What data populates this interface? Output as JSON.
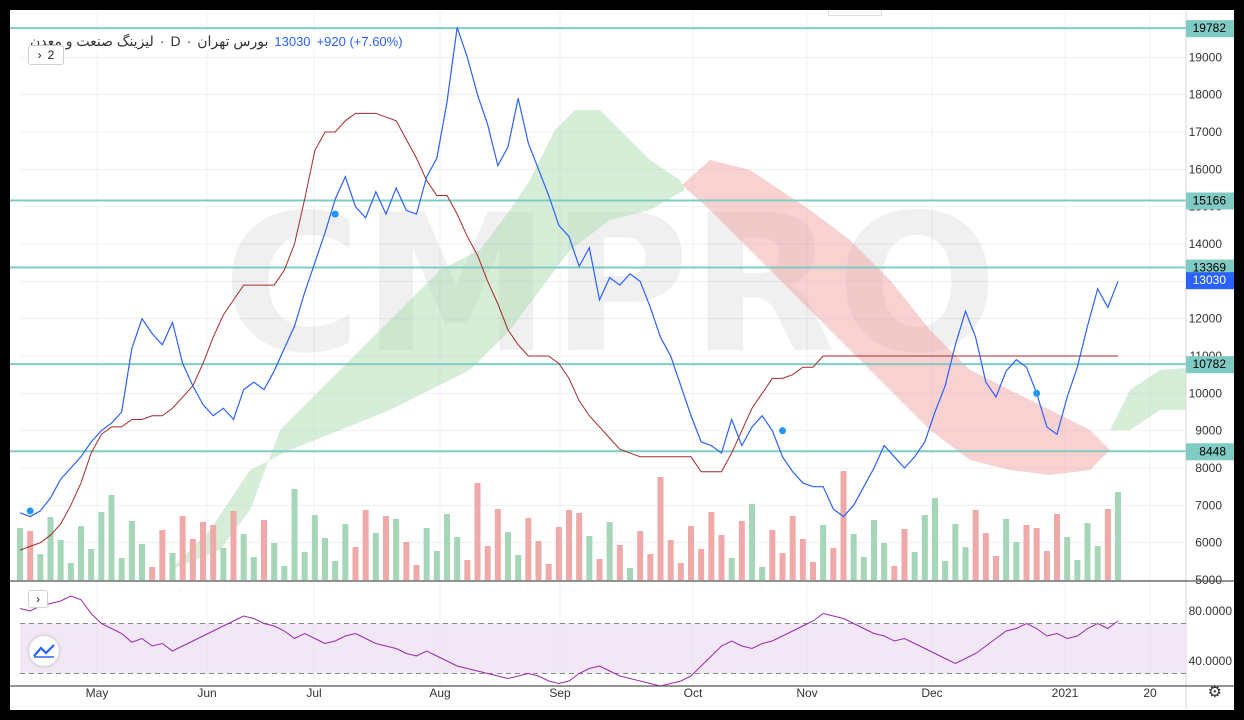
{
  "legend": {
    "exchange": "بورس تهران",
    "separator": "·",
    "interval": "D",
    "symbol": "لیزینگ صنعت و معدن",
    "price": "13030",
    "change": "+920 (+7.60%)"
  },
  "collapse_button": "2",
  "collapse_chevron": "›",
  "rsi_chevron": "›",
  "watermark": "CMPRO",
  "colors": {
    "price_line": "#2962ff",
    "base_line": "#a52a2a",
    "cloud_bull": "#a5d6a7",
    "cloud_bear": "#ef9a9a",
    "level_line": "#80cbc4",
    "level_label_bg": "#80cbc4",
    "last_price_bg": "#2962ff",
    "vol_up": "#a5d6b8",
    "vol_down": "#f0a9a9",
    "rsi_line": "#9c27b0",
    "rsi_band": "#ead7ec"
  },
  "chart_data": {
    "type": "line",
    "x_labels": [
      "May",
      "Jun",
      "Jul",
      "Aug",
      "Sep",
      "Oct",
      "Nov",
      "Dec",
      "2021",
      "20"
    ],
    "y_ticks": [
      "19000",
      "18000",
      "17000",
      "16000",
      "15000",
      "14000",
      "13000",
      "12000",
      "11000",
      "10000",
      "9000",
      "8000",
      "7000",
      "6000",
      "5000"
    ],
    "ylim": [
      5000,
      20000
    ],
    "levels": [
      19782,
      15166,
      13369,
      10782,
      8448
    ],
    "last_price": 13030,
    "series": [
      {
        "key": "price",
        "values": [
          6800,
          6700,
          6850,
          7200,
          7700,
          8000,
          8300,
          8700,
          9000,
          9200,
          9500,
          11200,
          12000,
          11600,
          11300,
          11900,
          10800,
          10200,
          9700,
          9400,
          9600,
          9300,
          10100,
          10300,
          10100,
          10600,
          11200,
          11800,
          12700,
          13500,
          14300,
          15200,
          15800,
          15000,
          14700,
          15400,
          14800,
          15500,
          14900,
          14800,
          15800,
          16300,
          17800,
          19800,
          19000,
          18000,
          17200,
          16100,
          16600,
          17900,
          16700,
          16000,
          15300,
          14500,
          14200,
          13400,
          13900,
          12500,
          13100,
          12900,
          13200,
          13000,
          12300,
          11500,
          11000,
          10200,
          9400,
          8700,
          8600,
          8400,
          9300,
          8600,
          9100,
          9400,
          9000,
          8300,
          7900,
          7600,
          7500,
          7500,
          6900,
          6700,
          7000,
          7500,
          8000,
          8600,
          8300,
          8000,
          8300,
          8700,
          9500,
          10200,
          11300,
          12200,
          11500,
          10300,
          9900,
          10600,
          10900,
          10700,
          10000,
          9100,
          8900,
          9900,
          10700,
          11800,
          12800,
          12300,
          13000
        ]
      },
      {
        "key": "base",
        "values": [
          5800,
          5900,
          6000,
          6200,
          6500,
          7000,
          7600,
          8400,
          8900,
          9100,
          9100,
          9300,
          9300,
          9400,
          9400,
          9600,
          9900,
          10200,
          10800,
          11500,
          12100,
          12500,
          12900,
          12900,
          12900,
          12900,
          13300,
          14000,
          15200,
          16500,
          17000,
          17000,
          17300,
          17500,
          17500,
          17500,
          17400,
          17300,
          16800,
          16300,
          15700,
          15300,
          15300,
          14800,
          14200,
          13700,
          13000,
          12400,
          11700,
          11300,
          11000,
          11000,
          11000,
          10800,
          10400,
          9800,
          9400,
          9100,
          8800,
          8500,
          8400,
          8300,
          8300,
          8300,
          8300,
          8300,
          8300,
          7900,
          7900,
          7900,
          8400,
          9000,
          9600,
          10000,
          10400,
          10400,
          10500,
          10700,
          10700,
          11000,
          11000,
          11000,
          11000,
          11000,
          11000,
          11000,
          11000,
          11000,
          11000,
          11000,
          11000,
          11000,
          11000,
          11000,
          11000,
          11000,
          11000,
          11000,
          11000,
          11000,
          11000,
          11000,
          11000,
          11000,
          11000,
          11000,
          11000,
          11000,
          11000
        ]
      }
    ],
    "rsi": {
      "ylim": [
        20,
        100
      ],
      "ticks": [
        "80.0000",
        "40.0000"
      ],
      "upper": 70,
      "lower": 30,
      "values": [
        82,
        80,
        84,
        86,
        88,
        92,
        89,
        78,
        70,
        66,
        62,
        55,
        58,
        52,
        54,
        48,
        52,
        56,
        60,
        64,
        68,
        72,
        76,
        74,
        70,
        68,
        64,
        58,
        62,
        58,
        54,
        56,
        60,
        62,
        58,
        54,
        52,
        50,
        46,
        44,
        48,
        44,
        40,
        36,
        34,
        32,
        30,
        28,
        26,
        28,
        30,
        28,
        24,
        22,
        24,
        30,
        34,
        36,
        32,
        28,
        26,
        24,
        22,
        20,
        22,
        24,
        28,
        36,
        44,
        52,
        56,
        52,
        50,
        54,
        56,
        60,
        64,
        68,
        72,
        78,
        76,
        74,
        70,
        66,
        62,
        60,
        56,
        58,
        54,
        50,
        46,
        42,
        38,
        42,
        46,
        52,
        58,
        64,
        66,
        70,
        66,
        60,
        62,
        58,
        60,
        66,
        70,
        66,
        72
      ]
    }
  }
}
